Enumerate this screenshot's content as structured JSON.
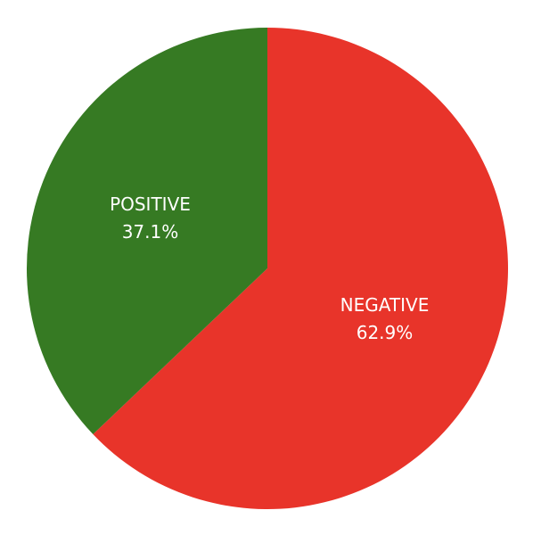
{
  "chart_data": {
    "type": "pie",
    "slices": [
      {
        "label": "NEGATIVE",
        "value": 62.9,
        "percent_label": "62.9%",
        "color": "#e8342a"
      },
      {
        "label": "POSITIVE",
        "value": 37.1,
        "percent_label": "37.1%",
        "color": "#367a23"
      }
    ],
    "start_angle": "12 o'clock",
    "direction": "clockwise"
  }
}
